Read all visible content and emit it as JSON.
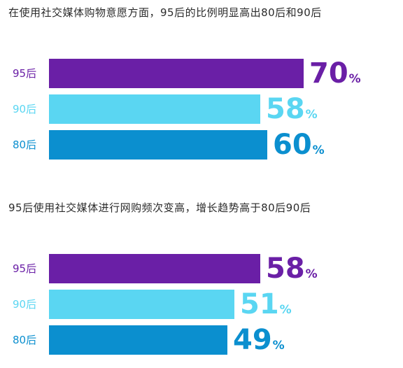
{
  "chart_data": [
    {
      "type": "bar",
      "orientation": "horizontal",
      "title": "在使用社交媒体购物意愿方面，95后的比例明显高出80后和90后",
      "categories": [
        "95后",
        "90后",
        "80后"
      ],
      "values": [
        70,
        58,
        60
      ],
      "value_labels": [
        "70",
        "58",
        "60"
      ],
      "unit": "%",
      "colors": [
        "#6a1fa6",
        "#5ad6f2",
        "#0b8fcf"
      ]
    },
    {
      "type": "bar",
      "orientation": "horizontal",
      "title": "95后使用社交媒体进行网购频次变高，增长趋势高于80后90后",
      "categories": [
        "95后",
        "90后",
        "80后"
      ],
      "values": [
        58,
        51,
        49
      ],
      "value_labels": [
        "58",
        "51",
        "49"
      ],
      "unit": "%",
      "colors": [
        "#6a1fa6",
        "#5ad6f2",
        "#0b8fcf"
      ]
    }
  ]
}
